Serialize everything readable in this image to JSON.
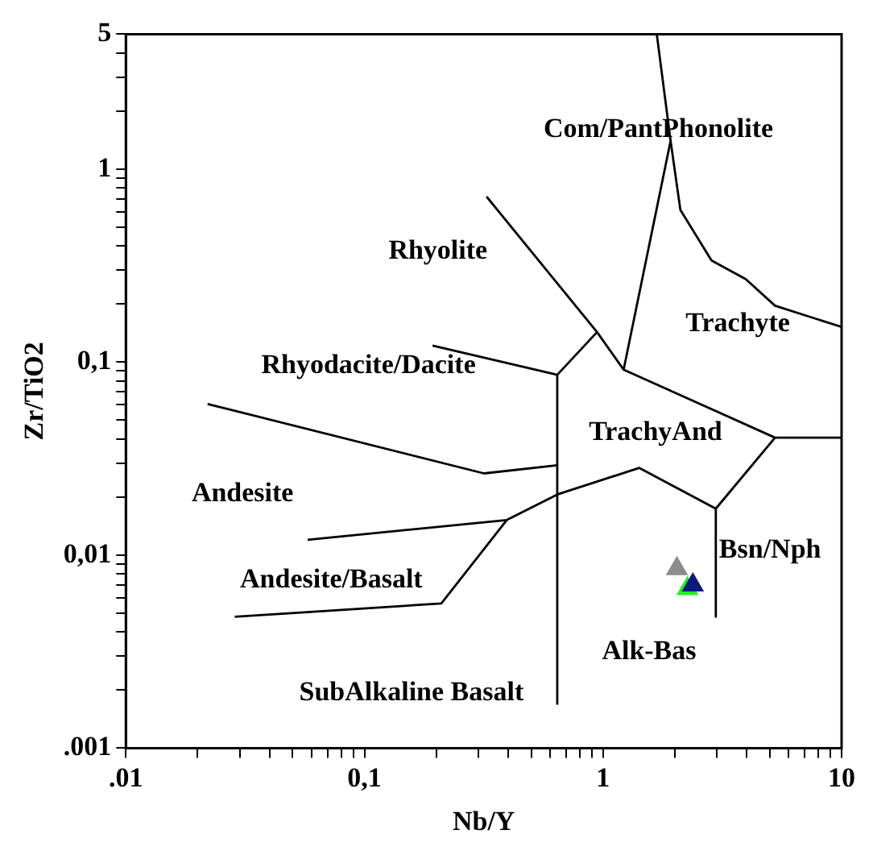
{
  "chart_data": {
    "type": "scatter",
    "xlabel": "Nb/Y",
    "ylabel": "Zr/TiO2",
    "log": "xy",
    "grid": false,
    "legend": false,
    "xlim": [
      0.01,
      10
    ],
    "ylim": [
      0.001,
      5
    ],
    "xticks": [
      {
        "value": 0.01,
        "label": ".01"
      },
      {
        "value": 0.02,
        "label": null
      },
      {
        "value": 0.03,
        "label": null
      },
      {
        "value": 0.04,
        "label": null
      },
      {
        "value": 0.05,
        "label": null
      },
      {
        "value": 0.06,
        "label": null
      },
      {
        "value": 0.07,
        "label": null
      },
      {
        "value": 0.08,
        "label": null
      },
      {
        "value": 0.09,
        "label": null
      },
      {
        "value": 0.1,
        "label": "0,1"
      },
      {
        "value": 0.2,
        "label": null
      },
      {
        "value": 0.3,
        "label": null
      },
      {
        "value": 0.4,
        "label": null
      },
      {
        "value": 0.5,
        "label": null
      },
      {
        "value": 0.6,
        "label": null
      },
      {
        "value": 0.7,
        "label": null
      },
      {
        "value": 0.8,
        "label": null
      },
      {
        "value": 0.9,
        "label": null
      },
      1,
      {
        "value": 2,
        "label": null
      },
      {
        "value": 3,
        "label": null
      },
      {
        "value": 4,
        "label": null
      },
      {
        "value": 5,
        "label": null
      },
      {
        "value": 6,
        "label": null
      },
      {
        "value": 7,
        "label": null
      },
      {
        "value": 8,
        "label": null
      },
      {
        "value": 9,
        "label": null
      },
      10
    ],
    "yticks": [
      {
        "value": 0.001,
        "label": ".001"
      },
      {
        "value": 0.002,
        "label": null
      },
      {
        "value": 0.003,
        "label": null
      },
      {
        "value": 0.004,
        "label": null
      },
      {
        "value": 0.005,
        "label": null
      },
      {
        "value": 0.006,
        "label": null
      },
      {
        "value": 0.007,
        "label": null
      },
      {
        "value": 0.008,
        "label": null
      },
      {
        "value": 0.009,
        "label": null
      },
      {
        "value": 0.01,
        "label": "0,01"
      },
      {
        "value": 0.02,
        "label": null
      },
      {
        "value": 0.03,
        "label": null
      },
      {
        "value": 0.04,
        "label": null
      },
      {
        "value": 0.05,
        "label": null
      },
      {
        "value": 0.06,
        "label": null
      },
      {
        "value": 0.07,
        "label": null
      },
      {
        "value": 0.08,
        "label": null
      },
      {
        "value": 0.09,
        "label": null
      },
      {
        "value": 0.1,
        "label": "0,1"
      },
      {
        "value": 0.2,
        "label": null
      },
      {
        "value": 0.3,
        "label": null
      },
      {
        "value": 0.4,
        "label": null
      },
      {
        "value": 0.5,
        "label": null
      },
      {
        "value": 0.6,
        "label": null
      },
      {
        "value": 0.7,
        "label": null
      },
      {
        "value": 0.8,
        "label": null
      },
      {
        "value": 0.9,
        "label": null
      },
      1,
      {
        "value": 2,
        "label": null
      },
      {
        "value": 3,
        "label": null
      },
      {
        "value": 4,
        "label": null
      },
      5
    ],
    "series": [
      {
        "type": "line",
        "color": "#000000",
        "x": [
          1.68,
          1.92,
          2.11,
          2.85,
          3.97,
          5.26,
          10
        ],
        "values": [
          5,
          1.4,
          0.614,
          0.336,
          0.269,
          0.196,
          0.152
        ]
      },
      {
        "type": "line",
        "color": "#000000",
        "x": [
          1.92,
          1.22,
          5.26,
          10
        ],
        "values": [
          1.4,
          0.0914,
          0.0406,
          0.0406
        ]
      },
      {
        "type": "line",
        "color": "#000000",
        "x": [
          5.26,
          2.97,
          2.97
        ],
        "values": [
          0.0406,
          0.0174,
          0.00479
        ]
      },
      {
        "type": "line",
        "color": "#000000",
        "x": [
          2.97,
          1.42,
          0.643,
          0.395,
          0.0578
        ],
        "values": [
          0.0174,
          0.0283,
          0.0206,
          0.0152,
          0.012
        ]
      },
      {
        "type": "line",
        "color": "#000000",
        "x": [
          0.395,
          0.21,
          0.0286
        ],
        "values": [
          0.0152,
          0.00562,
          0.00479
        ]
      },
      {
        "type": "line",
        "color": "#000000",
        "x": [
          0.643,
          0.643,
          0.944
        ],
        "values": [
          0.00168,
          0.0859,
          0.143
        ]
      },
      {
        "type": "line",
        "color": "#000000",
        "x": [
          0.325,
          0.944,
          1.22
        ],
        "values": [
          0.72,
          0.143,
          0.0914
        ]
      },
      {
        "type": "line",
        "color": "#000000",
        "x": [
          0.193,
          0.643
        ],
        "values": [
          0.1217,
          0.0859
        ]
      },
      {
        "type": "line",
        "color": "#000000",
        "x": [
          0.022,
          0.317,
          0.643
        ],
        "values": [
          0.0607,
          0.0265,
          0.0292
        ]
      },
      {
        "type": "scatter",
        "marker": "triangle",
        "color": "#8c8c8c",
        "x": [
          2.04
        ],
        "values": [
          0.0085
        ]
      },
      {
        "type": "scatter",
        "marker": "triangle",
        "color": "#0a1a80",
        "x": [
          2.38
        ],
        "values": [
          0.007
        ]
      },
      {
        "type": "scatter",
        "marker": "triangle",
        "color": "#22ee22",
        "x": [
          2.26
        ],
        "values": [
          0.0067
        ]
      }
    ],
    "annotations": [
      "Com/PantPhonolite",
      "Rhyolite",
      "Trachyte",
      "Rhyodacite/Dacite",
      "TrachyAnd",
      "Andesite",
      "Andesite/Basalt",
      "Bsn/Nph",
      "Alk-Bas",
      "SubAlkaline Basalt"
    ]
  }
}
